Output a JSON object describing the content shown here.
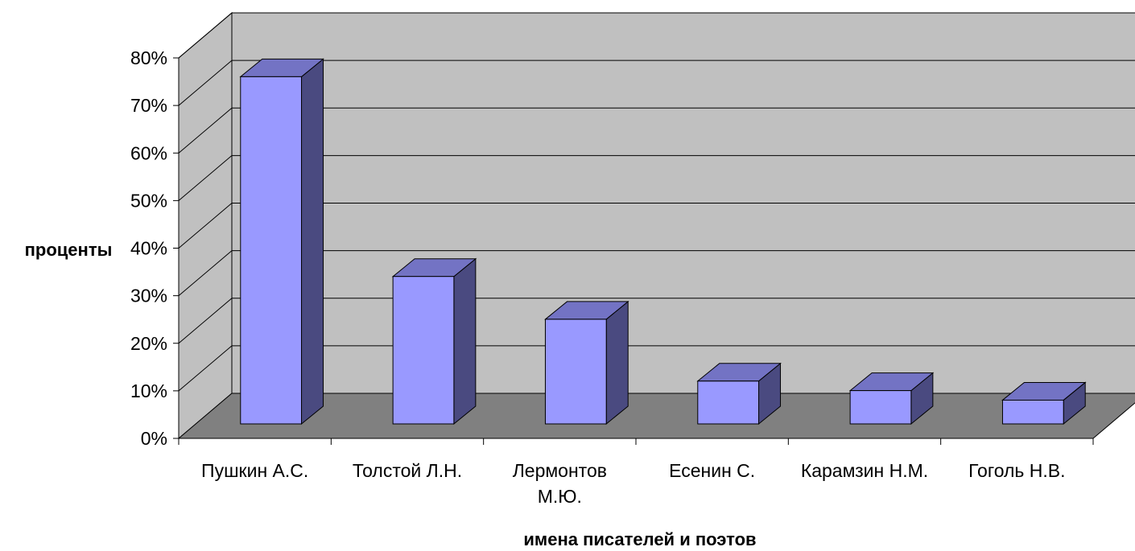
{
  "chart_data": {
    "type": "bar",
    "three_d": true,
    "title": "",
    "xlabel": "имена писателей и поэтов",
    "ylabel": "проценты",
    "ylim": [
      0,
      0.8
    ],
    "ytick_values": [
      0,
      0.1,
      0.2,
      0.3,
      0.4,
      0.5,
      0.6,
      0.7,
      0.8
    ],
    "ytick_labels": [
      "0%",
      "10%",
      "20%",
      "30%",
      "40%",
      "50%",
      "60%",
      "70%",
      "80%"
    ],
    "categories": [
      [
        "Пушкин А.С."
      ],
      [
        "Толстой Л.Н."
      ],
      [
        "Лермонтов",
        "М.Ю."
      ],
      [
        "Есенин С."
      ],
      [
        "Карамзин Н.М."
      ],
      [
        "Гоголь Н.В."
      ]
    ],
    "values": [
      0.73,
      0.31,
      0.22,
      0.09,
      0.07,
      0.05
    ],
    "grid": true,
    "legend": "none",
    "colors": {
      "bar_front": "#9999ff",
      "bar_side": "#4a4a80",
      "bar_top": "#7373c4",
      "back_wall": "#c0c0c0",
      "side_wall": "#c0c0c0",
      "floor": "#808080",
      "gridline": "#000000"
    }
  }
}
